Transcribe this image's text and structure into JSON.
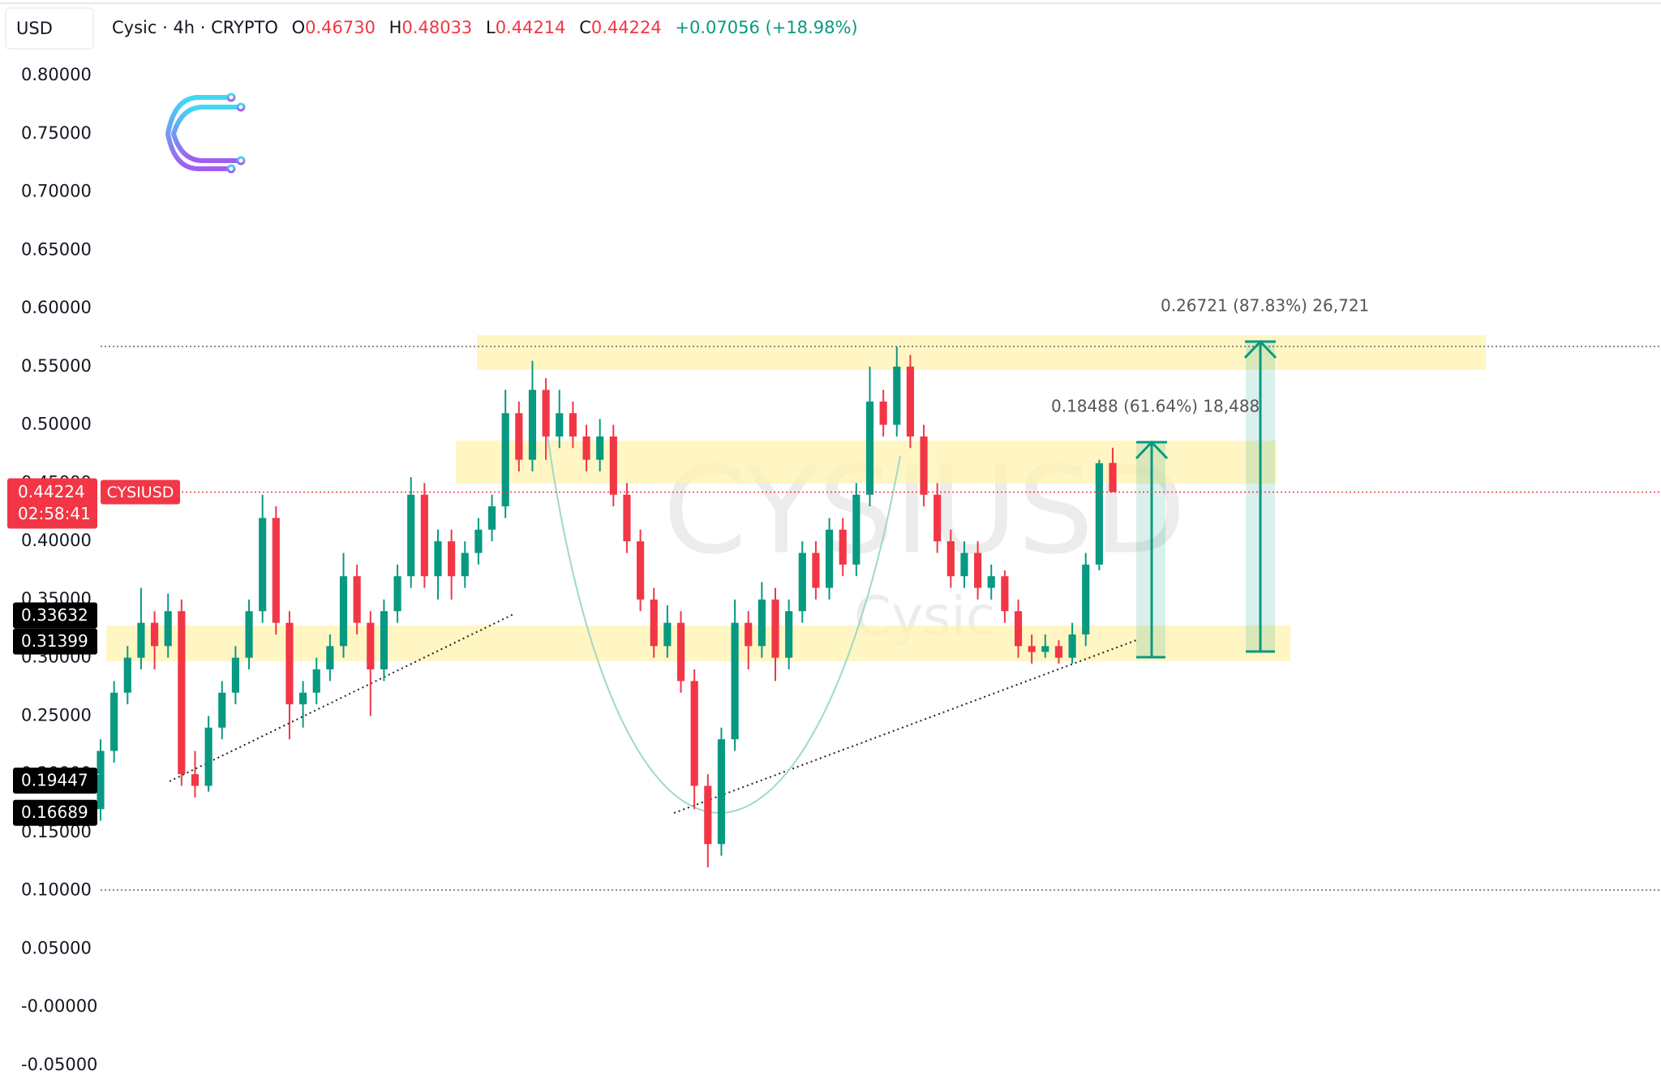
{
  "chart_data": {
    "type": "candlestick",
    "currency": "USD",
    "symbol": "Cysic · 4h · CRYPTO",
    "ohlc_header": [
      {
        "key": "O",
        "value": "0.46730"
      },
      {
        "key": "H",
        "value": "0.48033"
      },
      {
        "key": "L",
        "value": "0.44214"
      },
      {
        "key": "C",
        "value": "0.44224"
      }
    ],
    "change": "+0.07056 (+18.98%)",
    "up_color": "#089981",
    "down_color": "#f23645",
    "ylim": [
      -0.05,
      0.8
    ],
    "yticks": [
      {
        "value": 0.8,
        "label": "0.80000"
      },
      {
        "value": 0.75,
        "label": "0.75000"
      },
      {
        "value": 0.7,
        "label": "0.70000"
      },
      {
        "value": 0.65,
        "label": "0.65000"
      },
      {
        "value": 0.6,
        "label": "0.60000"
      },
      {
        "value": 0.55,
        "label": "0.55000"
      },
      {
        "value": 0.5,
        "label": "0.50000"
      },
      {
        "value": 0.45,
        "label": "0.45000"
      },
      {
        "value": 0.4,
        "label": "0.40000"
      },
      {
        "value": 0.35,
        "label": "0.35000"
      },
      {
        "value": 0.3,
        "label": "0.30000"
      },
      {
        "value": 0.25,
        "label": "0.25000"
      },
      {
        "value": 0.2,
        "label": "0.20000"
      },
      {
        "value": 0.15,
        "label": "0.15000"
      },
      {
        "value": 0.1,
        "label": "0.10000"
      },
      {
        "value": 0.05,
        "label": "0.05000"
      },
      {
        "value": 0,
        "label": "-0.00000"
      },
      {
        "value": -0.05,
        "label": "-0.05000"
      }
    ],
    "current_price": 0.44224,
    "ticker": "CYSIUSD",
    "countdown": "02:58:41",
    "level_tags": [
      0.33632,
      0.31399,
      0.19447,
      0.16689
    ],
    "measure_labels": [
      "0.26721 (87.83%) 26,721",
      "0.18488 (61.64%) 18,488"
    ],
    "watermark": [
      "CYSIUSD",
      "Cysic"
    ],
    "ohlc": [
      [
        0.17,
        0.23,
        0.16,
        0.22
      ],
      [
        0.22,
        0.28,
        0.21,
        0.27
      ],
      [
        0.27,
        0.31,
        0.26,
        0.3
      ],
      [
        0.3,
        0.36,
        0.29,
        0.33
      ],
      [
        0.33,
        0.34,
        0.29,
        0.31
      ],
      [
        0.31,
        0.355,
        0.3,
        0.34
      ],
      [
        0.34,
        0.35,
        0.19,
        0.2
      ],
      [
        0.2,
        0.22,
        0.18,
        0.19
      ],
      [
        0.19,
        0.25,
        0.185,
        0.24
      ],
      [
        0.24,
        0.28,
        0.23,
        0.27
      ],
      [
        0.27,
        0.31,
        0.26,
        0.3
      ],
      [
        0.3,
        0.35,
        0.29,
        0.34
      ],
      [
        0.34,
        0.44,
        0.33,
        0.42
      ],
      [
        0.42,
        0.43,
        0.32,
        0.33
      ],
      [
        0.33,
        0.34,
        0.23,
        0.26
      ],
      [
        0.26,
        0.28,
        0.24,
        0.27
      ],
      [
        0.27,
        0.3,
        0.26,
        0.29
      ],
      [
        0.29,
        0.32,
        0.28,
        0.31
      ],
      [
        0.31,
        0.39,
        0.3,
        0.37
      ],
      [
        0.37,
        0.38,
        0.32,
        0.33
      ],
      [
        0.33,
        0.34,
        0.25,
        0.29
      ],
      [
        0.29,
        0.35,
        0.28,
        0.34
      ],
      [
        0.34,
        0.38,
        0.33,
        0.37
      ],
      [
        0.37,
        0.455,
        0.36,
        0.44
      ],
      [
        0.44,
        0.45,
        0.36,
        0.37
      ],
      [
        0.37,
        0.41,
        0.35,
        0.4
      ],
      [
        0.4,
        0.41,
        0.35,
        0.37
      ],
      [
        0.37,
        0.4,
        0.36,
        0.39
      ],
      [
        0.39,
        0.42,
        0.38,
        0.41
      ],
      [
        0.41,
        0.44,
        0.4,
        0.43
      ],
      [
        0.43,
        0.53,
        0.42,
        0.51
      ],
      [
        0.51,
        0.52,
        0.46,
        0.47
      ],
      [
        0.47,
        0.555,
        0.46,
        0.53
      ],
      [
        0.53,
        0.54,
        0.47,
        0.49
      ],
      [
        0.49,
        0.53,
        0.48,
        0.51
      ],
      [
        0.51,
        0.52,
        0.48,
        0.49
      ],
      [
        0.49,
        0.5,
        0.46,
        0.47
      ],
      [
        0.47,
        0.505,
        0.46,
        0.49
      ],
      [
        0.49,
        0.5,
        0.43,
        0.44
      ],
      [
        0.44,
        0.45,
        0.39,
        0.4
      ],
      [
        0.4,
        0.41,
        0.34,
        0.35
      ],
      [
        0.35,
        0.36,
        0.3,
        0.31
      ],
      [
        0.31,
        0.345,
        0.3,
        0.33
      ],
      [
        0.33,
        0.34,
        0.27,
        0.28
      ],
      [
        0.28,
        0.29,
        0.17,
        0.19
      ],
      [
        0.19,
        0.2,
        0.12,
        0.14
      ],
      [
        0.14,
        0.24,
        0.13,
        0.23
      ],
      [
        0.23,
        0.35,
        0.22,
        0.33
      ],
      [
        0.33,
        0.34,
        0.29,
        0.31
      ],
      [
        0.31,
        0.365,
        0.3,
        0.35
      ],
      [
        0.35,
        0.36,
        0.28,
        0.3
      ],
      [
        0.3,
        0.35,
        0.29,
        0.34
      ],
      [
        0.34,
        0.4,
        0.33,
        0.39
      ],
      [
        0.39,
        0.4,
        0.35,
        0.36
      ],
      [
        0.36,
        0.42,
        0.35,
        0.41
      ],
      [
        0.41,
        0.42,
        0.37,
        0.38
      ],
      [
        0.38,
        0.45,
        0.37,
        0.44
      ],
      [
        0.44,
        0.55,
        0.43,
        0.52
      ],
      [
        0.52,
        0.53,
        0.49,
        0.5
      ],
      [
        0.5,
        0.567,
        0.49,
        0.55
      ],
      [
        0.55,
        0.56,
        0.48,
        0.49
      ],
      [
        0.49,
        0.5,
        0.43,
        0.44
      ],
      [
        0.44,
        0.45,
        0.39,
        0.4
      ],
      [
        0.4,
        0.41,
        0.36,
        0.37
      ],
      [
        0.37,
        0.4,
        0.36,
        0.39
      ],
      [
        0.39,
        0.4,
        0.35,
        0.36
      ],
      [
        0.36,
        0.38,
        0.35,
        0.37
      ],
      [
        0.37,
        0.375,
        0.33,
        0.34
      ],
      [
        0.34,
        0.35,
        0.3,
        0.31
      ],
      [
        0.31,
        0.32,
        0.295,
        0.305
      ],
      [
        0.305,
        0.32,
        0.3,
        0.31
      ],
      [
        0.31,
        0.315,
        0.295,
        0.3
      ],
      [
        0.3,
        0.33,
        0.295,
        0.32
      ],
      [
        0.32,
        0.39,
        0.31,
        0.38
      ],
      [
        0.38,
        0.47,
        0.375,
        0.467
      ],
      [
        0.4673,
        0.48033,
        0.44214,
        0.44224
      ]
    ]
  }
}
